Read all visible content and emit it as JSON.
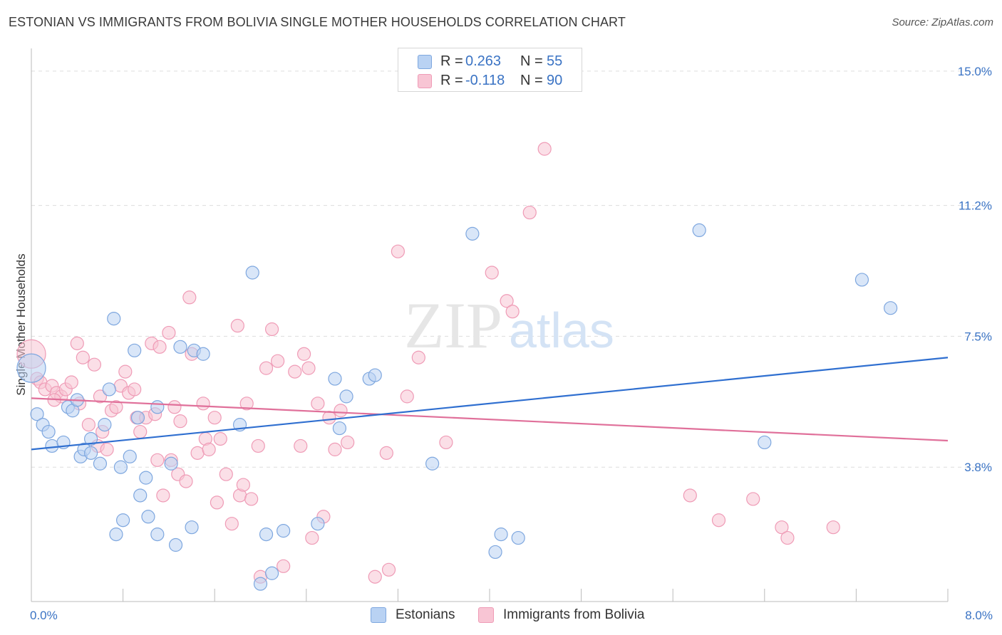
{
  "title": "ESTONIAN VS IMMIGRANTS FROM BOLIVIA SINGLE MOTHER HOUSEHOLDS CORRELATION CHART",
  "source": "Source: ZipAtlas.com",
  "watermark": {
    "part1": "ZIP",
    "part2": "atlas"
  },
  "legend_top": {
    "rows": [
      {
        "r_label": "R =",
        "r_value": "0.263",
        "n_label": "N =",
        "n_value": "55"
      },
      {
        "r_label": "R =",
        "r_value": "-0.118",
        "n_label": "N =",
        "n_value": "90"
      }
    ]
  },
  "legend_bottom": {
    "items": [
      "Estonians",
      "Immigrants from Bolivia"
    ]
  },
  "colors": {
    "estonians_fill": "#b9d2f3",
    "estonians_stroke": "#7ea7df",
    "estonians_line": "#2f6fd0",
    "bolivia_fill": "#f8c5d4",
    "bolivia_stroke": "#ef9bb6",
    "bolivia_line": "#e0709a",
    "tick_text": "#3a73c4",
    "grid": "#dddddd"
  },
  "chart_data": {
    "type": "scatter",
    "title": "ESTONIAN VS IMMIGRANTS FROM BOLIVIA SINGLE MOTHER HOUSEHOLDS CORRELATION CHART",
    "xlabel": "",
    "ylabel": "Single Mother Households",
    "xlim": [
      0,
      8.0
    ],
    "ylim": [
      0,
      15.0
    ],
    "x_tick_labels": [
      "0.0%",
      "8.0%"
    ],
    "y_ticks": [
      3.8,
      7.5,
      11.2,
      15.0
    ],
    "y_tick_labels": [
      "3.8%",
      "7.5%",
      "11.2%",
      "15.0%"
    ],
    "grid": true,
    "legend_position": "top-center",
    "series": [
      {
        "name": "Estonians",
        "r": 0.263,
        "n": 55,
        "trend": {
          "x": [
            0,
            8.0
          ],
          "y": [
            4.3,
            6.9
          ]
        },
        "points": [
          [
            0.0,
            6.6
          ],
          [
            0.05,
            5.3
          ],
          [
            0.1,
            5.0
          ],
          [
            0.15,
            4.8
          ],
          [
            0.18,
            4.4
          ],
          [
            0.28,
            4.5
          ],
          [
            0.32,
            5.5
          ],
          [
            0.36,
            5.4
          ],
          [
            0.4,
            5.7
          ],
          [
            0.43,
            4.1
          ],
          [
            0.46,
            4.3
          ],
          [
            0.52,
            4.6
          ],
          [
            0.52,
            4.2
          ],
          [
            0.6,
            3.9
          ],
          [
            0.64,
            5.0
          ],
          [
            0.68,
            6.0
          ],
          [
            0.72,
            8.0
          ],
          [
            0.74,
            1.9
          ],
          [
            0.78,
            3.8
          ],
          [
            0.8,
            2.3
          ],
          [
            0.86,
            4.1
          ],
          [
            0.9,
            7.1
          ],
          [
            0.93,
            5.2
          ],
          [
            0.95,
            3.0
          ],
          [
            1.0,
            3.5
          ],
          [
            1.02,
            2.4
          ],
          [
            1.1,
            1.9
          ],
          [
            1.1,
            5.5
          ],
          [
            1.22,
            3.9
          ],
          [
            1.26,
            1.6
          ],
          [
            1.3,
            7.2
          ],
          [
            1.4,
            2.1
          ],
          [
            1.42,
            7.1
          ],
          [
            1.5,
            7.0
          ],
          [
            1.82,
            5.0
          ],
          [
            1.93,
            9.3
          ],
          [
            2.0,
            0.5
          ],
          [
            2.05,
            1.9
          ],
          [
            2.1,
            0.8
          ],
          [
            2.2,
            2.0
          ],
          [
            2.5,
            2.2
          ],
          [
            2.65,
            6.3
          ],
          [
            2.69,
            4.9
          ],
          [
            2.75,
            5.8
          ],
          [
            2.95,
            6.3
          ],
          [
            3.0,
            6.4
          ],
          [
            3.5,
            3.9
          ],
          [
            3.85,
            10.4
          ],
          [
            4.05,
            1.4
          ],
          [
            4.1,
            1.9
          ],
          [
            4.25,
            1.8
          ],
          [
            5.83,
            10.5
          ],
          [
            6.4,
            4.5
          ],
          [
            7.25,
            9.1
          ],
          [
            7.5,
            8.3
          ]
        ]
      },
      {
        "name": "Immigrants from Bolivia",
        "r": -0.118,
        "n": 90,
        "trend": {
          "x": [
            0,
            8.0
          ],
          "y": [
            5.75,
            4.55
          ]
        },
        "points": [
          [
            0.0,
            7.0
          ],
          [
            0.05,
            6.3
          ],
          [
            0.08,
            6.2
          ],
          [
            0.12,
            6.0
          ],
          [
            0.18,
            6.1
          ],
          [
            0.22,
            5.9
          ],
          [
            0.26,
            5.8
          ],
          [
            0.3,
            6.0
          ],
          [
            0.35,
            6.2
          ],
          [
            0.4,
            7.3
          ],
          [
            0.42,
            5.6
          ],
          [
            0.45,
            6.9
          ],
          [
            0.5,
            5.0
          ],
          [
            0.55,
            6.7
          ],
          [
            0.58,
            4.4
          ],
          [
            0.62,
            4.8
          ],
          [
            0.66,
            4.3
          ],
          [
            0.7,
            5.4
          ],
          [
            0.74,
            5.5
          ],
          [
            0.78,
            6.1
          ],
          [
            0.82,
            6.5
          ],
          [
            0.85,
            5.9
          ],
          [
            0.9,
            6.0
          ],
          [
            0.92,
            5.2
          ],
          [
            1.0,
            5.2
          ],
          [
            1.05,
            7.3
          ],
          [
            1.08,
            5.3
          ],
          [
            1.1,
            4.0
          ],
          [
            1.12,
            7.2
          ],
          [
            1.15,
            3.0
          ],
          [
            1.2,
            7.6
          ],
          [
            1.25,
            5.5
          ],
          [
            1.28,
            3.6
          ],
          [
            1.3,
            5.1
          ],
          [
            1.35,
            3.4
          ],
          [
            1.38,
            8.6
          ],
          [
            1.4,
            7.0
          ],
          [
            1.45,
            4.2
          ],
          [
            1.5,
            5.6
          ],
          [
            1.52,
            4.6
          ],
          [
            1.55,
            4.3
          ],
          [
            1.6,
            5.2
          ],
          [
            1.65,
            4.6
          ],
          [
            1.7,
            3.6
          ],
          [
            1.75,
            2.2
          ],
          [
            1.8,
            7.8
          ],
          [
            1.82,
            3.0
          ],
          [
            1.85,
            3.3
          ],
          [
            1.88,
            5.6
          ],
          [
            1.92,
            2.9
          ],
          [
            1.98,
            4.4
          ],
          [
            2.0,
            0.7
          ],
          [
            2.05,
            6.6
          ],
          [
            2.1,
            7.7
          ],
          [
            2.15,
            6.8
          ],
          [
            2.2,
            1.0
          ],
          [
            2.3,
            6.5
          ],
          [
            2.35,
            4.4
          ],
          [
            2.38,
            7.0
          ],
          [
            2.42,
            6.6
          ],
          [
            2.5,
            5.6
          ],
          [
            2.55,
            2.4
          ],
          [
            2.6,
            5.2
          ],
          [
            2.65,
            4.3
          ],
          [
            2.7,
            5.4
          ],
          [
            2.76,
            4.5
          ],
          [
            3.1,
            4.2
          ],
          [
            3.12,
            0.9
          ],
          [
            3.2,
            9.9
          ],
          [
            3.28,
            5.8
          ],
          [
            3.38,
            6.9
          ],
          [
            3.62,
            4.5
          ],
          [
            4.02,
            9.3
          ],
          [
            4.15,
            8.5
          ],
          [
            4.2,
            8.2
          ],
          [
            4.35,
            11.0
          ],
          [
            4.48,
            12.8
          ],
          [
            5.75,
            3.0
          ],
          [
            6.0,
            2.3
          ],
          [
            6.3,
            2.9
          ],
          [
            6.55,
            2.1
          ],
          [
            6.6,
            1.8
          ],
          [
            7.0,
            2.1
          ],
          [
            0.2,
            5.7
          ],
          [
            0.6,
            5.8
          ],
          [
            0.95,
            4.8
          ],
          [
            1.22,
            4.0
          ],
          [
            1.62,
            2.8
          ],
          [
            2.45,
            1.8
          ],
          [
            3.0,
            0.7
          ]
        ]
      }
    ]
  }
}
